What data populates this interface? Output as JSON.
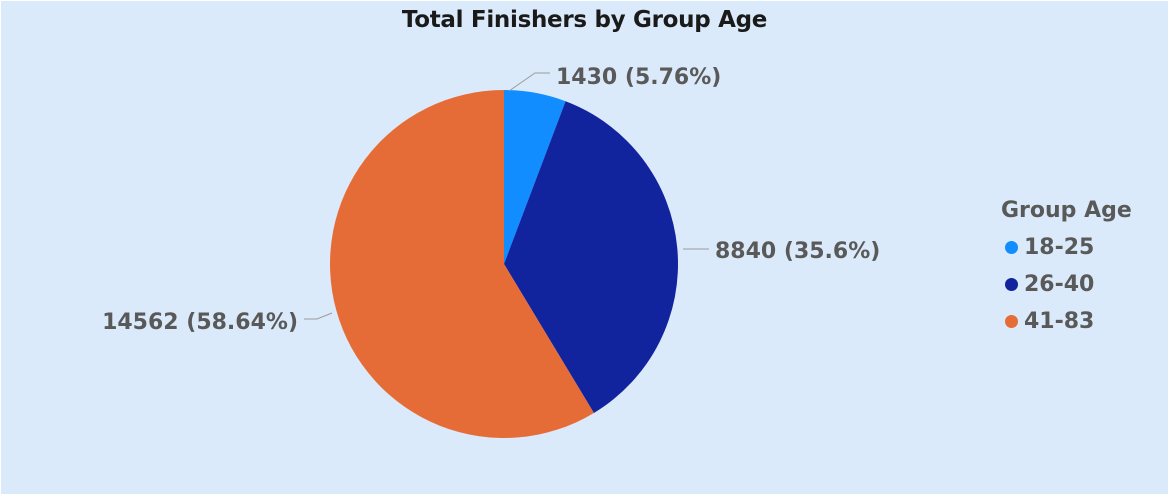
{
  "chart_data": {
    "type": "pie",
    "title": "Total Finishers by Group Age",
    "legend_title": "Group Age",
    "legend_position": "right",
    "slices": [
      {
        "label": "18-25",
        "value": 1430,
        "display": "1430 (5.76%)",
        "color": "#118dff"
      },
      {
        "label": "26-40",
        "value": 8840,
        "display": "8840 (35.6%)",
        "color": "#12239e"
      },
      {
        "label": "41-83",
        "value": 14562,
        "display": "14562 (58.64%)",
        "color": "#e66c37"
      }
    ]
  }
}
